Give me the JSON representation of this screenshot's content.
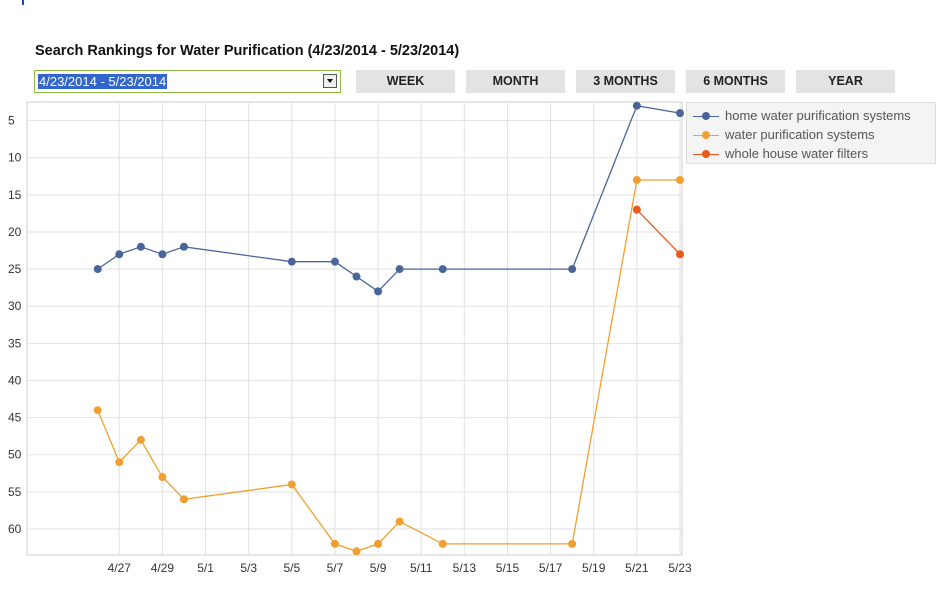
{
  "header": {
    "title": "Search Rankings for Water Purification (4/23/2014 - 5/23/2014)",
    "date_range_value": "4/23/2014 - 5/23/2014"
  },
  "buttons": [
    {
      "label": "WEEK",
      "active": false
    },
    {
      "label": "MONTH",
      "active": true
    },
    {
      "label": "3 MONTHS",
      "active": false
    },
    {
      "label": "6 MONTHS",
      "active": false
    },
    {
      "label": "YEAR",
      "active": false
    }
  ],
  "chart_data": {
    "type": "line",
    "title": "",
    "xlabel": "",
    "ylabel": "",
    "y_inverted": true,
    "ylim": [
      2.5,
      63.5
    ],
    "xlim": [
      "2014-04-23",
      "2014-05-23"
    ],
    "y_ticks": [
      5,
      10,
      15,
      20,
      25,
      30,
      35,
      40,
      45,
      50,
      55,
      60
    ],
    "x_ticks": [
      {
        "date": "2014-04-27",
        "label": "4/27"
      },
      {
        "date": "2014-04-29",
        "label": "4/29"
      },
      {
        "date": "2014-05-01",
        "label": "5/1"
      },
      {
        "date": "2014-05-03",
        "label": "5/3"
      },
      {
        "date": "2014-05-05",
        "label": "5/5"
      },
      {
        "date": "2014-05-07",
        "label": "5/7"
      },
      {
        "date": "2014-05-09",
        "label": "5/9"
      },
      {
        "date": "2014-05-11",
        "label": "5/11"
      },
      {
        "date": "2014-05-13",
        "label": "5/13"
      },
      {
        "date": "2014-05-15",
        "label": "5/15"
      },
      {
        "date": "2014-05-17",
        "label": "5/17"
      },
      {
        "date": "2014-05-19",
        "label": "5/19"
      },
      {
        "date": "2014-05-21",
        "label": "5/21"
      },
      {
        "date": "2014-05-23",
        "label": "5/23"
      }
    ],
    "grid": true,
    "legend_position": "top-right outside",
    "series": [
      {
        "name": "home water purification systems",
        "color": "#4a6699",
        "points": [
          {
            "x": "2014-04-26",
            "y": 25
          },
          {
            "x": "2014-04-27",
            "y": 23
          },
          {
            "x": "2014-04-28",
            "y": 22
          },
          {
            "x": "2014-04-29",
            "y": 23
          },
          {
            "x": "2014-04-30",
            "y": 22
          },
          {
            "x": "2014-05-05",
            "y": 24
          },
          {
            "x": "2014-05-07",
            "y": 24
          },
          {
            "x": "2014-05-08",
            "y": 26
          },
          {
            "x": "2014-05-09",
            "y": 28
          },
          {
            "x": "2014-05-10",
            "y": 25
          },
          {
            "x": "2014-05-12",
            "y": 25
          },
          {
            "x": "2014-05-18",
            "y": 25
          },
          {
            "x": "2014-05-21",
            "y": 3
          },
          {
            "x": "2014-05-23",
            "y": 4
          }
        ]
      },
      {
        "name": "water purification systems",
        "color": "#f0a030",
        "points": [
          {
            "x": "2014-04-26",
            "y": 44
          },
          {
            "x": "2014-04-27",
            "y": 51
          },
          {
            "x": "2014-04-28",
            "y": 48
          },
          {
            "x": "2014-04-29",
            "y": 53
          },
          {
            "x": "2014-04-30",
            "y": 56
          },
          {
            "x": "2014-05-05",
            "y": 54
          },
          {
            "x": "2014-05-07",
            "y": 62
          },
          {
            "x": "2014-05-08",
            "y": 63
          },
          {
            "x": "2014-05-09",
            "y": 62
          },
          {
            "x": "2014-05-10",
            "y": 59
          },
          {
            "x": "2014-05-12",
            "y": 62
          },
          {
            "x": "2014-05-18",
            "y": 62
          },
          {
            "x": "2014-05-21",
            "y": 13
          },
          {
            "x": "2014-05-23",
            "y": 13
          }
        ]
      },
      {
        "name": "whole house water filters",
        "color": "#e85a1a",
        "points": [
          {
            "x": "2014-05-21",
            "y": 17
          },
          {
            "x": "2014-05-23",
            "y": 23
          }
        ]
      }
    ]
  }
}
